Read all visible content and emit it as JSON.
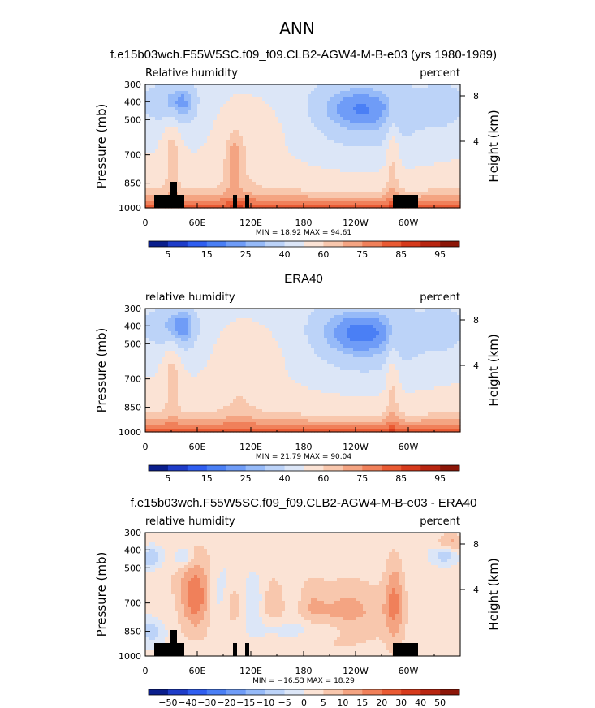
{
  "page_title": "ANN",
  "palette_abs": [
    "#0a1e8c",
    "#1e3cc8",
    "#2f5ef0",
    "#4a7ff5",
    "#6f9cf7",
    "#96baf8",
    "#bcd3f8",
    "#dce6f7",
    "#fbe3d5",
    "#f8c7ad",
    "#f4a482",
    "#f0805a",
    "#e95a33",
    "#d63a1c",
    "#b82510",
    "#8c1608"
  ],
  "palette_diff": [
    "#0a1e8c",
    "#1e3cc8",
    "#2f5ef0",
    "#4a7ff5",
    "#6f9cf7",
    "#96baf8",
    "#bcd3f8",
    "#dce6f7",
    "#fbe3d5",
    "#f8c7ad",
    "#f4a482",
    "#f0805a",
    "#e95a33",
    "#d63a1c",
    "#b82510",
    "#8c1608"
  ],
  "chart_data": [
    {
      "type": "heatmap",
      "title": "f.e15b03wch.F55W5SC.f09_f09.CLB2-AGW4-M-B-e03 (yrs 1980-1989)",
      "left_label": "Relative humidity",
      "right_label": "percent",
      "ylabel": "Pressure (mb)",
      "y2label": "Height (km)",
      "xticks": [
        "0",
        "60E",
        "120E",
        "180",
        "120W",
        "60W"
      ],
      "yticks": [
        "300",
        "400",
        "500",
        "700",
        "850",
        "1000"
      ],
      "y2ticks": [
        "8",
        "4"
      ],
      "minmax_text": "MIN =   18.92   MAX =   94.61",
      "min": 18.92,
      "max": 94.61,
      "colorbar_labels": [
        "5",
        "15",
        "25",
        "40",
        "60",
        "75",
        "85",
        "95"
      ],
      "ylim": [
        1000,
        300
      ],
      "xlim": [
        0,
        360
      ]
    },
    {
      "type": "heatmap",
      "title": "ERA40",
      "left_label": "relative humidity",
      "right_label": "percent",
      "ylabel": "Pressure (mb)",
      "y2label": "Height (km)",
      "xticks": [
        "0",
        "60E",
        "120E",
        "180",
        "120W",
        "60W"
      ],
      "yticks": [
        "300",
        "400",
        "500",
        "700",
        "850",
        "1000"
      ],
      "y2ticks": [
        "8",
        "4"
      ],
      "minmax_text": "MIN =   21.79   MAX =   90.04",
      "min": 21.79,
      "max": 90.04,
      "colorbar_labels": [
        "5",
        "15",
        "25",
        "40",
        "60",
        "75",
        "85",
        "95"
      ],
      "ylim": [
        1000,
        300
      ],
      "xlim": [
        0,
        360
      ]
    },
    {
      "type": "heatmap",
      "title": "f.e15b03wch.F55W5SC.f09_f09.CLB2-AGW4-M-B-e03 - ERA40",
      "left_label": "relative humidity",
      "right_label": "percent",
      "ylabel": "Pressure (mb)",
      "y2label": "Height (km)",
      "xticks": [
        "0",
        "60E",
        "120E",
        "180",
        "120W",
        "60W"
      ],
      "yticks": [
        "300",
        "400",
        "500",
        "700",
        "850",
        "1000"
      ],
      "y2ticks": [
        "8",
        "4"
      ],
      "minmax_text": "MIN = −16.53   MAX =   18.29",
      "min": -16.53,
      "max": 18.29,
      "colorbar_labels": [
        "−50",
        "−40",
        "−30",
        "−20",
        "−15",
        "−10",
        "−5",
        "0",
        "5",
        "10",
        "15",
        "20",
        "30",
        "40",
        "50"
      ],
      "ylim": [
        1000,
        300
      ],
      "xlim": [
        0,
        360
      ]
    }
  ]
}
